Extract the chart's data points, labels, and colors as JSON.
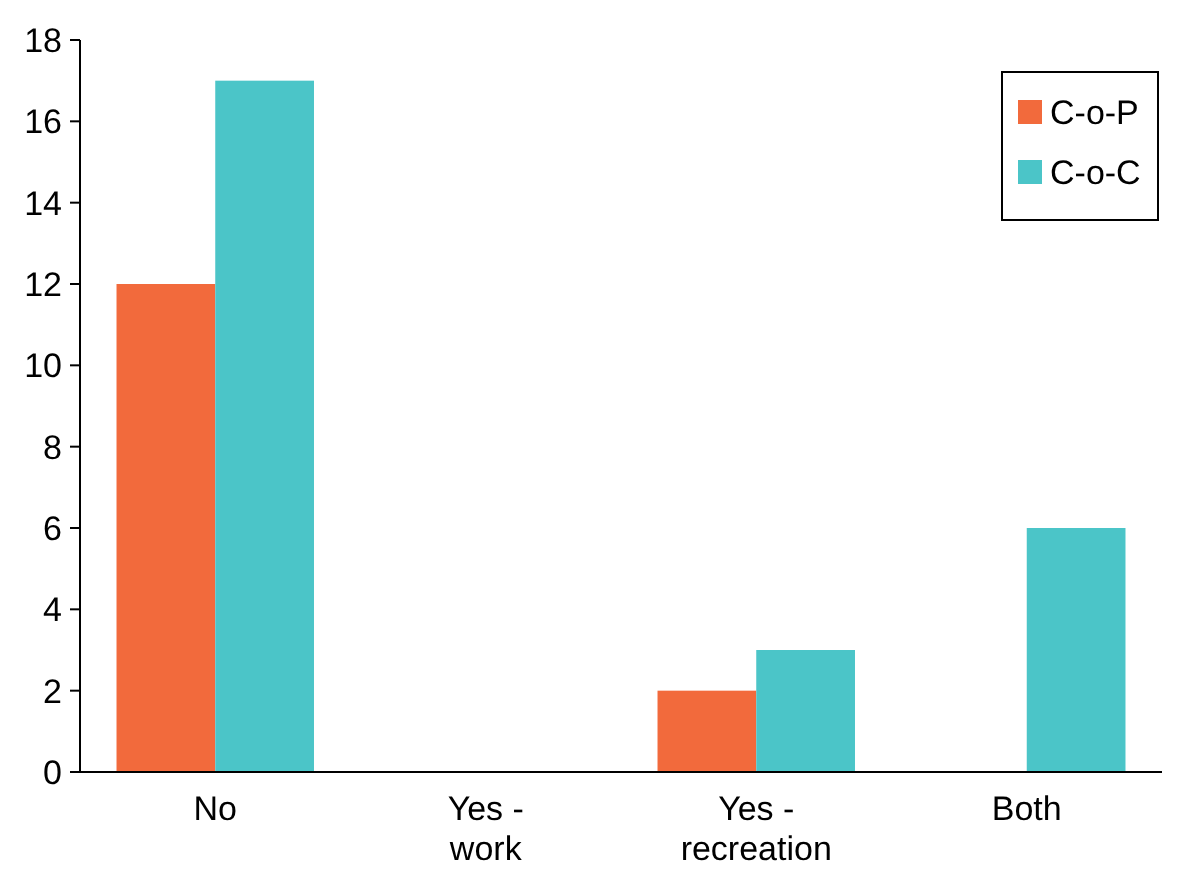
{
  "chart_data": {
    "type": "bar",
    "categories": [
      "No",
      "Yes - work",
      "Yes - recreation",
      "Both"
    ],
    "series": [
      {
        "name": "C-o-P",
        "color": "#f26a3c",
        "values": [
          12,
          0,
          2,
          0
        ]
      },
      {
        "name": "C-o-C",
        "color": "#4bc5c8",
        "values": [
          17,
          0,
          3,
          6
        ]
      }
    ],
    "ylim": [
      0,
      18
    ],
    "yticks": [
      0,
      2,
      4,
      6,
      8,
      10,
      12,
      14,
      16,
      18
    ],
    "grid": false,
    "legend": "top right"
  }
}
